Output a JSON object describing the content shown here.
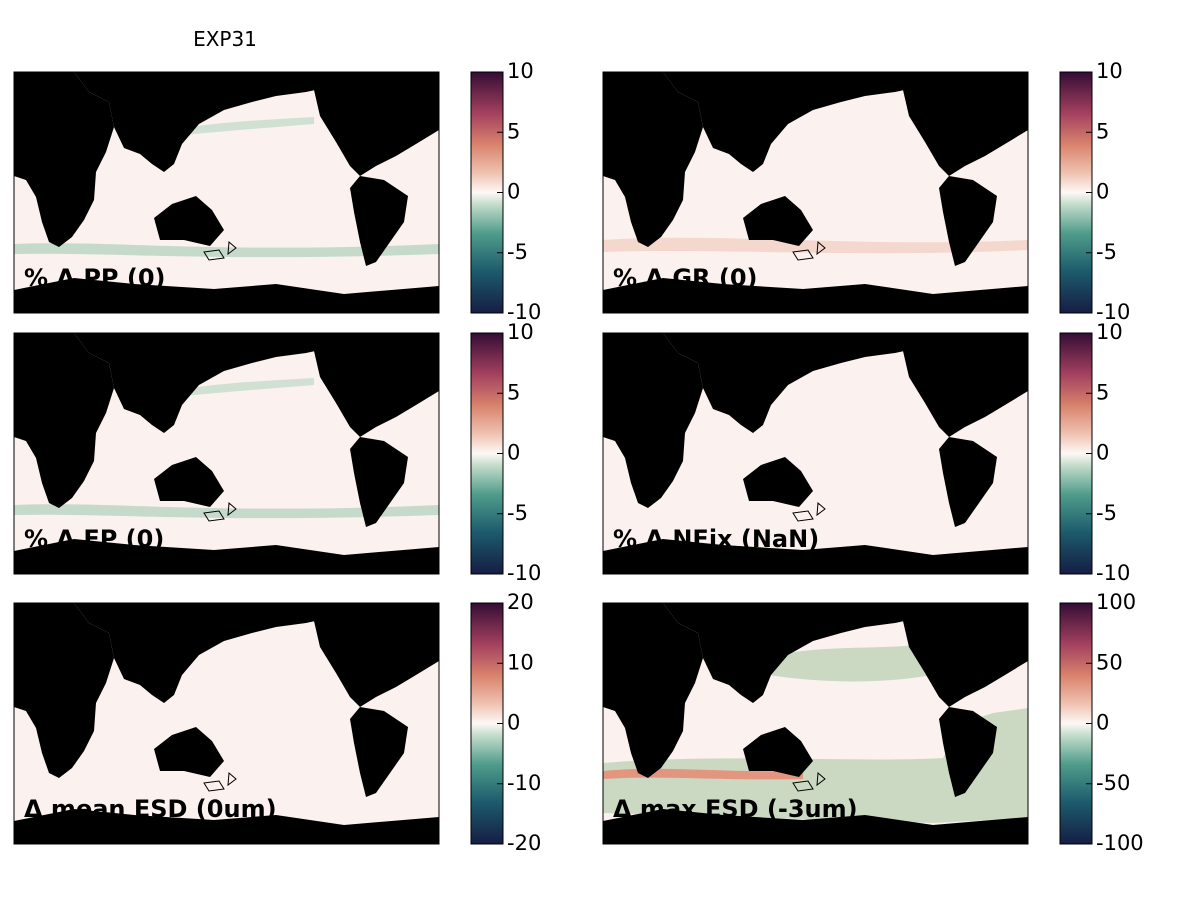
{
  "title": "EXP31",
  "panels": [
    {
      "label": "% Δ PP (0)",
      "colorbar": {
        "lim": [
          -10,
          10
        ],
        "ticks": [
          -10,
          -5,
          0,
          5,
          10
        ]
      }
    },
    {
      "label": "% Δ GR (0)",
      "colorbar": {
        "lim": [
          -10,
          10
        ],
        "ticks": [
          -10,
          -5,
          0,
          5,
          10
        ]
      }
    },
    {
      "label": "% Δ EP (0)",
      "colorbar": {
        "lim": [
          -10,
          10
        ],
        "ticks": [
          -10,
          -5,
          0,
          5,
          10
        ]
      }
    },
    {
      "label": "% Δ NFix (NaN)",
      "colorbar": {
        "lim": [
          -10,
          10
        ],
        "ticks": [
          -10,
          -5,
          0,
          5,
          10
        ]
      }
    },
    {
      "label": "Δ mean ESD (0um)",
      "colorbar": {
        "lim": [
          -20,
          20
        ],
        "ticks": [
          -20,
          -10,
          0,
          10,
          20
        ]
      }
    },
    {
      "label": "Δ max ESD (-3um)",
      "colorbar": {
        "lim": [
          -100,
          100
        ],
        "ticks": [
          -100,
          -50,
          0,
          50,
          100
        ]
      }
    }
  ]
}
